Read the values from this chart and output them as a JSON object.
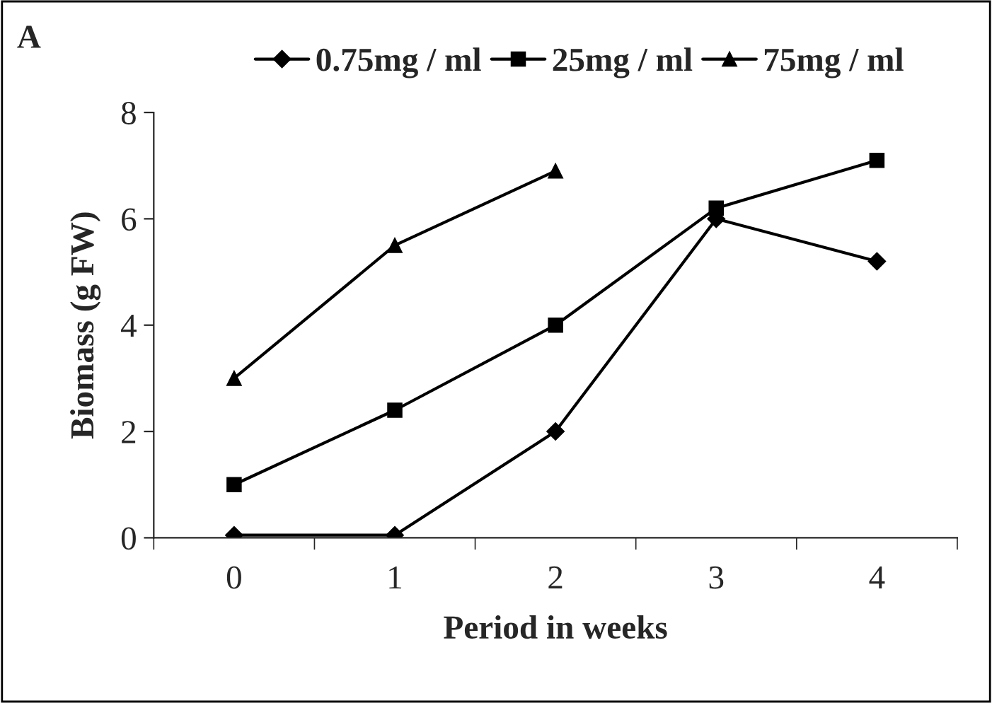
{
  "chart_data": {
    "type": "line",
    "xlabel": "Period in weeks",
    "ylabel": "Biomass (g FW)",
    "annotations": [
      "A"
    ],
    "categories": [
      "0",
      "1",
      "2",
      "3",
      "4"
    ],
    "series": [
      {
        "name": "0.75mg / ml",
        "color": "#000000",
        "marker": "diamond",
        "values": [
          0.05,
          0.05,
          2.0,
          6.0,
          5.2
        ]
      },
      {
        "name": "25mg / ml",
        "color": "#000000",
        "marker": "square",
        "values": [
          1.0,
          2.4,
          4.0,
          6.2,
          7.1
        ]
      },
      {
        "name": "75mg / ml",
        "color": "#000000",
        "marker": "triangle",
        "values": [
          3.0,
          5.5,
          6.9,
          null,
          null
        ]
      }
    ],
    "ylim": [
      0,
      8
    ],
    "yticks": [
      0,
      2,
      4,
      6,
      8
    ],
    "grid": false,
    "legend": "top",
    "line_style": "solid"
  }
}
